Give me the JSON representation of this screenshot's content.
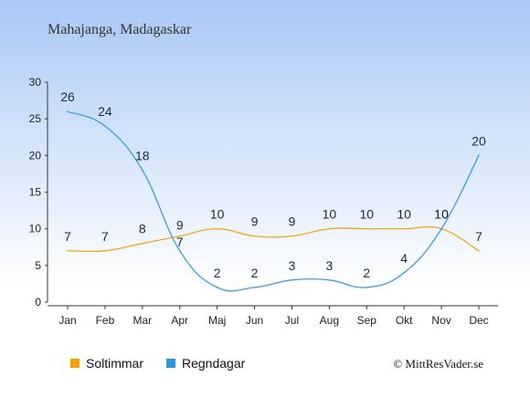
{
  "chart_data": {
    "type": "line",
    "title": "Mahajanga, Madagaskar",
    "categories": [
      "Jan",
      "Feb",
      "Mar",
      "Apr",
      "Maj",
      "Jun",
      "Jul",
      "Aug",
      "Sep",
      "Okt",
      "Nov",
      "Dec"
    ],
    "ylim": [
      0,
      30
    ],
    "yticks": [
      0,
      5,
      10,
      15,
      20,
      25,
      30
    ],
    "grid": false,
    "legend_position": "bottom-left",
    "series": [
      {
        "name": "Soltimmar",
        "color": "#f5a000",
        "values": [
          7,
          7,
          8,
          9,
          10,
          9,
          9,
          10,
          10,
          10,
          10,
          7
        ]
      },
      {
        "name": "Regndagar",
        "color": "#2e96e0",
        "values": [
          26,
          24,
          18,
          7,
          2,
          2,
          3,
          3,
          2,
          4,
          10,
          20
        ]
      }
    ],
    "background_colors": [
      "#a9c8f5",
      "#ffffff"
    ],
    "copyright": "© MittResVader.se"
  }
}
